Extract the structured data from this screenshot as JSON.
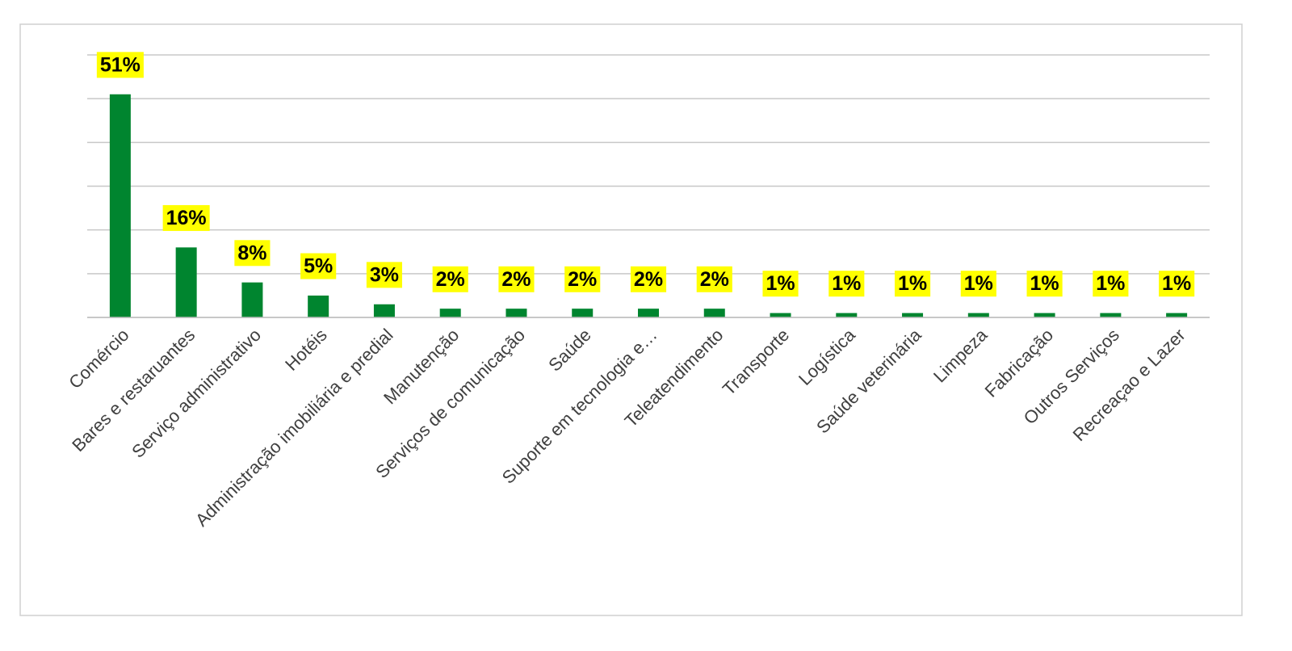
{
  "chart_data": {
    "type": "bar",
    "categories": [
      "Comércio",
      "Bares e restaruantes",
      "Serviço administrativo",
      "Hotéis",
      "Administração imobiliária e predial",
      "Manutenção",
      "Serviços de comunicação",
      "Saúde",
      "Suporte em tecnologia e…",
      "Teleatendimento",
      "Transporte",
      "Logística",
      "Saúde veterinária",
      "Limpeza",
      "Fabricação",
      "Outros Serviços",
      "Recreaçao e Lazer"
    ],
    "values": [
      51,
      16,
      8,
      5,
      3,
      2,
      2,
      2,
      2,
      2,
      1,
      1,
      1,
      1,
      1,
      1,
      1
    ],
    "value_labels": [
      "51%",
      "16%",
      "8%",
      "5%",
      "3%",
      "2%",
      "2%",
      "2%",
      "2%",
      "2%",
      "1%",
      "1%",
      "1%",
      "1%",
      "1%",
      "1%",
      "1%"
    ],
    "color": "#00852f",
    "label_background": "#ffff00",
    "ylim": [
      0,
      60
    ],
    "yticks": [
      0,
      10,
      20,
      30,
      40,
      50,
      60
    ],
    "grid": true
  }
}
